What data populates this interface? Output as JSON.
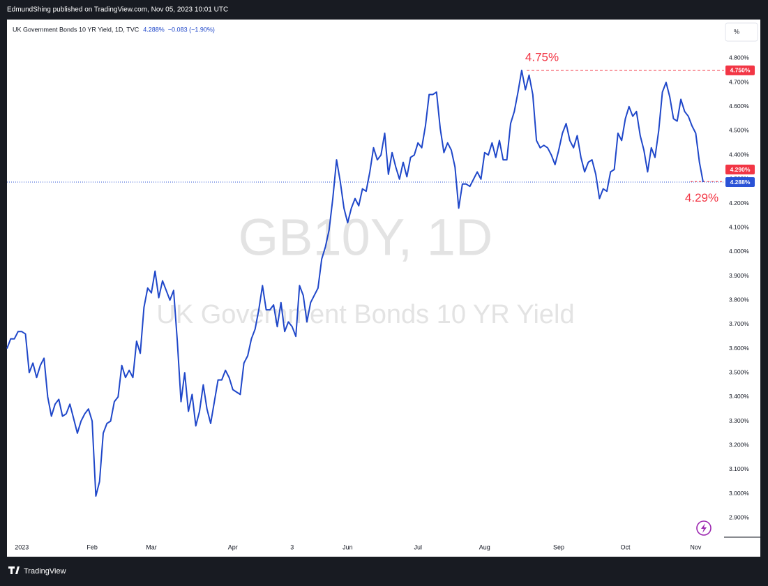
{
  "page": {
    "header": "EdmundShing published on TradingView.com, Nov 05, 2023 10:01 UTC",
    "footer": "TradingView",
    "scale_button": "%"
  },
  "chart_data": {
    "type": "line",
    "title": "UK Government Bonds 10 YR Yield, 1D, TVC",
    "last_value": "4.288%",
    "change": "−0.083 (−1.90%)",
    "watermark": "GB10Y, 1D",
    "watermark_subtitle": "UK Government Bonds 10 YR Yield",
    "color": "#1f47c9",
    "categories": [
      null,
      null,
      null,
      null,
      "2023",
      null,
      null,
      null,
      null,
      null,
      null,
      null,
      null,
      null,
      null,
      null,
      null,
      null,
      null,
      null,
      null,
      null,
      null,
      "Feb",
      null,
      null,
      null,
      null,
      null,
      null,
      null,
      null,
      null,
      null,
      null,
      null,
      null,
      null,
      null,
      "Mar",
      null,
      null,
      null,
      null,
      null,
      null,
      null,
      null,
      null,
      null,
      null,
      null,
      null,
      null,
      null,
      null,
      null,
      null,
      null,
      null,
      null,
      "Apr",
      null,
      null,
      null,
      null,
      null,
      null,
      null,
      null,
      null,
      null,
      null,
      null,
      null,
      null,
      null,
      "3",
      null,
      null,
      null,
      null,
      null,
      null,
      null,
      null,
      null,
      null,
      null,
      null,
      null,
      null,
      "Jun",
      null,
      null,
      null,
      null,
      null,
      null,
      null,
      null,
      null,
      null,
      null,
      null,
      null,
      null,
      null,
      null,
      null,
      null,
      "Jul",
      null,
      null,
      null,
      null,
      null,
      null,
      null,
      null,
      null,
      null,
      null,
      null,
      null,
      null,
      null,
      null,
      null,
      "Aug",
      null,
      null,
      null,
      null,
      null,
      null,
      null,
      null,
      null,
      null,
      null,
      null,
      null,
      null,
      null,
      null,
      null,
      null,
      null,
      "Sep",
      null,
      null,
      null,
      null,
      null,
      null,
      null,
      null,
      null,
      null,
      null,
      null,
      null,
      null,
      null,
      null,
      null,
      "Oct",
      null,
      null,
      null,
      null,
      null,
      null,
      null,
      null,
      null,
      null,
      null,
      null,
      null,
      null,
      null,
      null,
      null,
      null,
      "Nov",
      null,
      null
    ],
    "values": [
      3.6,
      3.64,
      3.64,
      3.67,
      3.67,
      3.66,
      3.5,
      3.54,
      3.48,
      3.53,
      3.56,
      3.4,
      3.32,
      3.37,
      3.39,
      3.32,
      3.33,
      3.37,
      3.31,
      3.25,
      3.3,
      3.33,
      3.35,
      3.3,
      2.99,
      3.05,
      3.25,
      3.29,
      3.3,
      3.38,
      3.4,
      3.53,
      3.48,
      3.51,
      3.48,
      3.63,
      3.58,
      3.77,
      3.85,
      3.83,
      3.92,
      3.81,
      3.88,
      3.84,
      3.8,
      3.84,
      3.63,
      3.38,
      3.5,
      3.34,
      3.41,
      3.28,
      3.34,
      3.45,
      3.35,
      3.29,
      3.38,
      3.47,
      3.47,
      3.51,
      3.48,
      3.43,
      3.42,
      3.41,
      3.54,
      3.57,
      3.64,
      3.68,
      3.76,
      3.86,
      3.76,
      3.76,
      3.78,
      3.69,
      3.79,
      3.67,
      3.71,
      3.69,
      3.65,
      3.86,
      3.82,
      3.71,
      3.79,
      3.82,
      3.85,
      3.97,
      4.02,
      4.09,
      4.22,
      4.38,
      4.29,
      4.18,
      4.12,
      4.18,
      4.22,
      4.19,
      4.26,
      4.25,
      4.33,
      4.43,
      4.38,
      4.4,
      4.49,
      4.32,
      4.41,
      4.35,
      4.3,
      4.37,
      4.31,
      4.39,
      4.4,
      4.45,
      4.43,
      4.52,
      4.65,
      4.65,
      4.66,
      4.51,
      4.41,
      4.45,
      4.42,
      4.35,
      4.18,
      4.28,
      4.28,
      4.27,
      4.3,
      4.33,
      4.3,
      4.41,
      4.4,
      4.45,
      4.39,
      4.46,
      4.38,
      4.38,
      4.53,
      4.58,
      4.66,
      4.75,
      4.67,
      4.73,
      4.65,
      4.46,
      4.43,
      4.44,
      4.43,
      4.4,
      4.36,
      4.42,
      4.49,
      4.53,
      4.46,
      4.43,
      4.48,
      4.39,
      4.33,
      4.37,
      4.38,
      4.32,
      4.22,
      4.26,
      4.25,
      4.33,
      4.34,
      4.49,
      4.46,
      4.55,
      4.6,
      4.56,
      4.58,
      4.48,
      4.42,
      4.33,
      4.43,
      4.39,
      4.5,
      4.66,
      4.7,
      4.64,
      4.55,
      4.54,
      4.63,
      4.58,
      4.56,
      4.52,
      4.49,
      4.37,
      4.288
    ],
    "ylim": [
      2.82,
      4.96
    ],
    "yticks": [
      {
        "value": 4.8,
        "label": "4.800%"
      },
      {
        "value": 4.7,
        "label": "4.700%"
      },
      {
        "value": 4.6,
        "label": "4.600%"
      },
      {
        "value": 4.5,
        "label": "4.500%"
      },
      {
        "value": 4.4,
        "label": "4.400%"
      },
      {
        "value": 4.3,
        "label": "4.300%"
      },
      {
        "value": 4.2,
        "label": "4.200%"
      },
      {
        "value": 4.1,
        "label": "4.100%"
      },
      {
        "value": 4.0,
        "label": "4.000%"
      },
      {
        "value": 3.9,
        "label": "3.900%"
      },
      {
        "value": 3.8,
        "label": "3.800%"
      },
      {
        "value": 3.7,
        "label": "3.700%"
      },
      {
        "value": 3.6,
        "label": "3.600%"
      },
      {
        "value": 3.5,
        "label": "3.500%"
      },
      {
        "value": 3.4,
        "label": "3.400%"
      },
      {
        "value": 3.3,
        "label": "3.300%"
      },
      {
        "value": 3.2,
        "label": "3.200%"
      },
      {
        "value": 3.1,
        "label": "3.100%"
      },
      {
        "value": 3.0,
        "label": "3.000%"
      },
      {
        "value": 2.9,
        "label": "2.900%"
      }
    ],
    "high_line": {
      "value": 4.75,
      "label": "4.750%",
      "color": "#f23645"
    },
    "close_marker": {
      "value": 4.29,
      "label": "4.290%",
      "color": "#f23645"
    },
    "last_line": {
      "value": 4.288,
      "label": "4.288%",
      "color": "#2a52d6"
    },
    "annotations": [
      {
        "text": "4.75%",
        "value": 4.75,
        "color": "#f23645"
      },
      {
        "text": "4.29%",
        "value": 4.29,
        "color": "#f23645"
      }
    ]
  }
}
